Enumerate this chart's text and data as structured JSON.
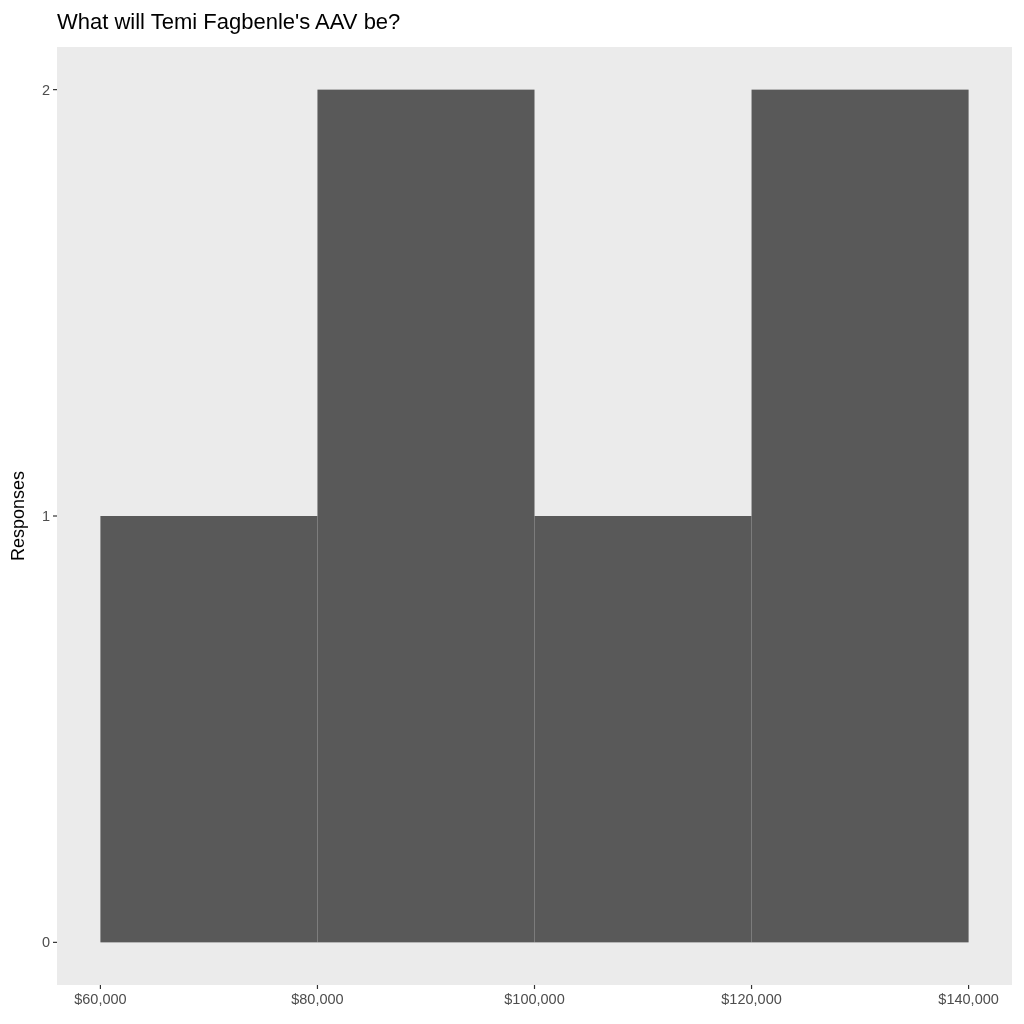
{
  "chart_data": {
    "type": "histogram",
    "title": "What will Temi Fagbenle's AAV be?",
    "ylabel": "Responses",
    "bins": [
      60000,
      80000,
      100000,
      120000,
      140000
    ],
    "values": [
      1,
      2,
      1,
      2
    ],
    "color": "#595959",
    "xlim": [
      56000,
      144000
    ],
    "ylim": [
      -0.1,
      2.1
    ],
    "xticks": [
      {
        "value": 60000,
        "label": "$60,000"
      },
      {
        "value": 80000,
        "label": "$80,000"
      },
      {
        "value": 100000,
        "label": "$100,000"
      },
      {
        "value": 120000,
        "label": "$120,000"
      },
      {
        "value": 140000,
        "label": "$140,000"
      }
    ],
    "yticks": [
      0,
      1,
      2
    ]
  }
}
